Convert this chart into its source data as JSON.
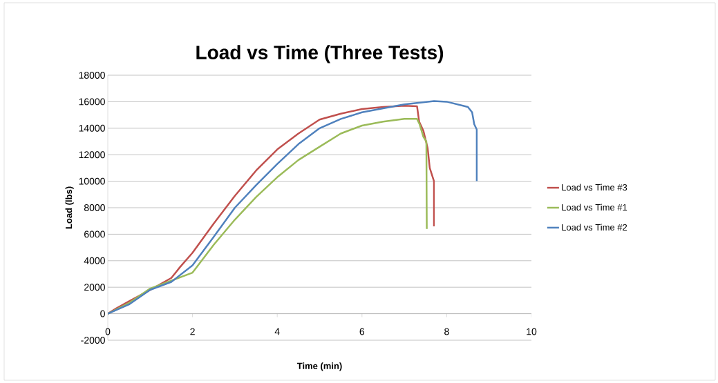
{
  "chart_data": {
    "type": "line",
    "title": "Load vs Time (Three Tests)",
    "xlabel": "Time (min)",
    "ylabel": "Load (lbs)",
    "xlim": [
      0,
      10
    ],
    "xticks": [
      0,
      2,
      4,
      6,
      8,
      10
    ],
    "ylim": [
      -2000,
      18000
    ],
    "yticks": [
      -2000,
      0,
      2000,
      4000,
      6000,
      8000,
      10000,
      12000,
      14000,
      16000,
      18000
    ],
    "grid": "y",
    "legend": "right",
    "marker": "none",
    "series": [
      {
        "name": "Load vs Time #3",
        "color": "#c0504d",
        "x": [
          0,
          0.2,
          0.5,
          1,
          1.5,
          1.7,
          2,
          2.5,
          3,
          3.5,
          4,
          4.5,
          5,
          5.5,
          6,
          6.5,
          7,
          7.3,
          7.35,
          7.45,
          7.55,
          7.6,
          7.7,
          7.7
        ],
        "values": [
          0,
          400,
          940,
          1800,
          2700,
          3500,
          4600,
          6800,
          8900,
          10800,
          12400,
          13600,
          14650,
          15100,
          15450,
          15600,
          15700,
          15650,
          14500,
          13800,
          12500,
          11000,
          10000,
          6600
        ]
      },
      {
        "name": "Load vs Time #1",
        "color": "#9bbb59",
        "x": [
          0,
          0.5,
          1,
          1.5,
          2,
          2.5,
          3,
          3.5,
          4,
          4.5,
          5,
          5.5,
          6,
          6.5,
          7,
          7.3,
          7.36,
          7.45,
          7.52,
          7.53
        ],
        "values": [
          0,
          800,
          1900,
          2500,
          3100,
          5200,
          7100,
          8800,
          10300,
          11600,
          12600,
          13600,
          14200,
          14500,
          14700,
          14700,
          14300,
          13350,
          13000,
          6400
        ]
      },
      {
        "name": "Load vs Time #2",
        "color": "#4f81bd",
        "x": [
          0,
          0.5,
          1,
          1.5,
          2,
          2.5,
          3,
          3.5,
          4,
          4.5,
          5,
          5.5,
          6,
          6.5,
          7,
          7.7,
          8,
          8.5,
          8.6,
          8.65,
          8.71,
          8.71
        ],
        "values": [
          0,
          700,
          1800,
          2400,
          3650,
          5800,
          8000,
          9700,
          11300,
          12800,
          14000,
          14700,
          15200,
          15500,
          15800,
          16050,
          16000,
          15600,
          15200,
          14300,
          13900,
          10000
        ]
      }
    ]
  }
}
